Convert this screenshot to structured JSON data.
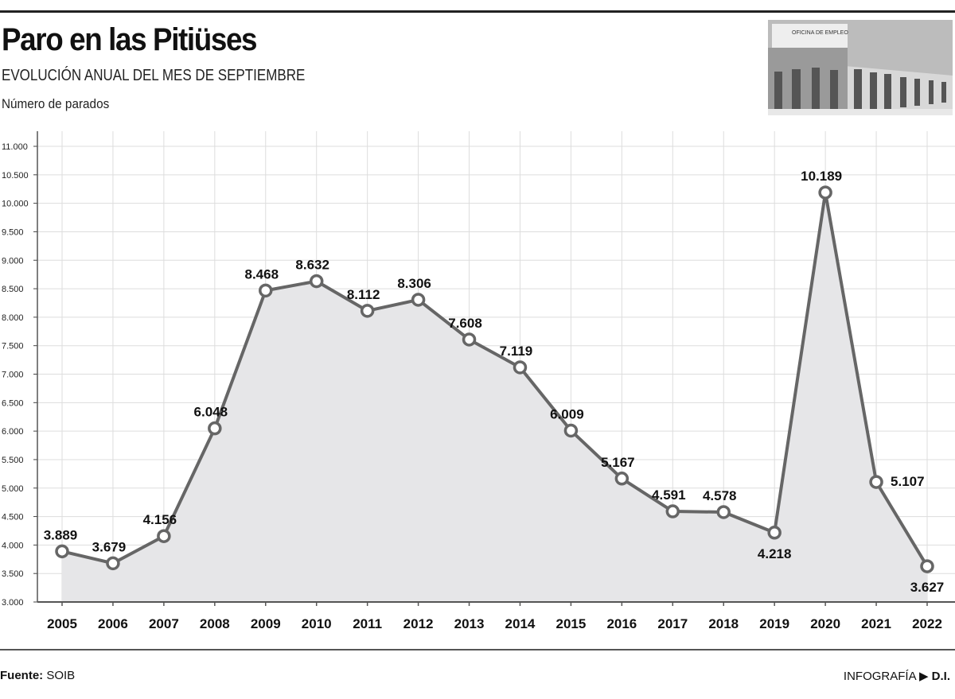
{
  "header": {
    "title": "Paro en las Pitiüses",
    "subtitle": "EVOLUCIÓN ANUAL DEL MES DE SEPTIEMBRE",
    "unit_label": "Número de parados"
  },
  "photo": {
    "sign_text": "OFICINA DE EMPLEO"
  },
  "chart_data": {
    "type": "area",
    "title": "Paro en las Pitiüses",
    "subtitle": "EVOLUCIÓN ANUAL DEL MES DE SEPTIEMBRE",
    "ylabel": "Número de parados",
    "xlabel": "",
    "ylim": [
      3000,
      11000
    ],
    "yticks": [
      3000,
      3500,
      4000,
      4500,
      5000,
      5500,
      6000,
      6500,
      7000,
      7500,
      8000,
      8500,
      9000,
      9500,
      10000,
      10500,
      11000
    ],
    "ytick_labels": [
      "3.000",
      "3.500",
      "4.000",
      "4.500",
      "5.000",
      "5.500",
      "6.000",
      "6.500",
      "7.000",
      "7.500",
      "8.000",
      "8.500",
      "9.000",
      "9.500",
      "10.000",
      "10.500",
      "11.000"
    ],
    "grid": true,
    "categories": [
      "2005",
      "2006",
      "2007",
      "2008",
      "2009",
      "2010",
      "2011",
      "2012",
      "2013",
      "2014",
      "2015",
      "2016",
      "2017",
      "2018",
      "2019",
      "2020",
      "2021",
      "2022"
    ],
    "values": [
      3889,
      3679,
      4156,
      6048,
      8468,
      8632,
      8112,
      8306,
      7608,
      7119,
      6009,
      5167,
      4591,
      4578,
      4218,
      10189,
      5107,
      3627
    ],
    "data_labels": [
      "3.889",
      "3.679",
      "4.156",
      "6.048",
      "8.468",
      "8.632",
      "8.112",
      "8.306",
      "7.608",
      "7.119",
      "6.009",
      "5.167",
      "4.591",
      "4.578",
      "4.218",
      "10.189",
      "5.107",
      "3.627"
    ],
    "colors": {
      "line": "#666666",
      "fill": "#e6e6e8",
      "grid": "#dddddd",
      "marker_fill": "#ffffff"
    }
  },
  "footer": {
    "source_label": "Fuente:",
    "source_value": "SOIB",
    "credit_label": "INFOGRAFÍA",
    "credit_arrow_icon": "triangle-right-icon",
    "credit_value": "D.I."
  }
}
